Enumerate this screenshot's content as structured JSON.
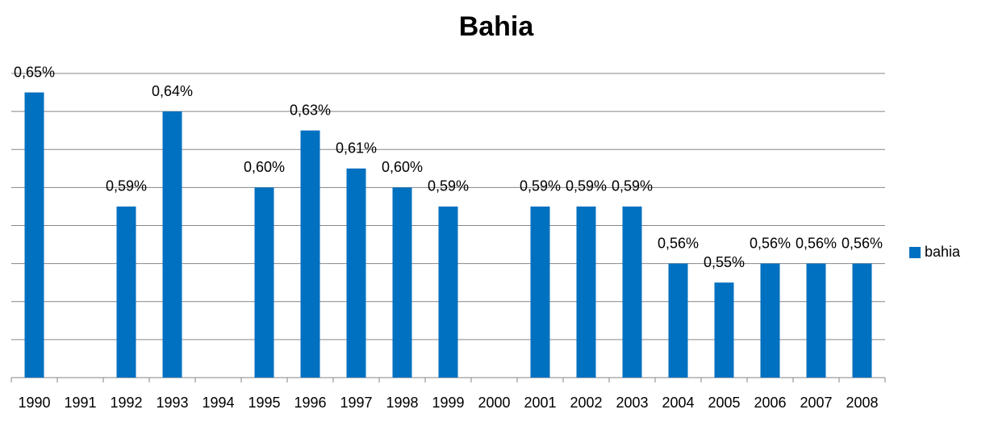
{
  "chart_data": {
    "type": "bar",
    "title": "Bahia",
    "categories": [
      "1990",
      "1991",
      "1992",
      "1993",
      "1994",
      "1995",
      "1996",
      "1997",
      "1998",
      "1999",
      "2000",
      "2001",
      "2002",
      "2003",
      "2004",
      "2005",
      "2006",
      "2007",
      "2008"
    ],
    "series": [
      {
        "name": "bahia",
        "color": "#0070c0",
        "values": [
          0.65,
          null,
          0.59,
          0.64,
          null,
          0.6,
          0.63,
          0.61,
          0.6,
          0.59,
          null,
          0.59,
          0.59,
          0.59,
          0.56,
          0.55,
          0.56,
          0.56,
          0.56
        ],
        "value_labels": [
          "0,65%",
          null,
          "0,59%",
          "0,64%",
          null,
          "0,60%",
          "0,63%",
          "0,61%",
          "0,60%",
          "0,59%",
          null,
          "0,59%",
          "0,59%",
          "0,59%",
          "0,56%",
          "0,55%",
          "0,56%",
          "0,56%",
          "0,56%"
        ]
      }
    ],
    "ylim": [
      0.5,
      0.66
    ],
    "yticks": [
      0.5,
      0.52,
      0.54,
      0.56,
      0.58,
      0.6,
      0.62,
      0.64,
      0.66
    ],
    "grid": true,
    "legend": "right"
  }
}
